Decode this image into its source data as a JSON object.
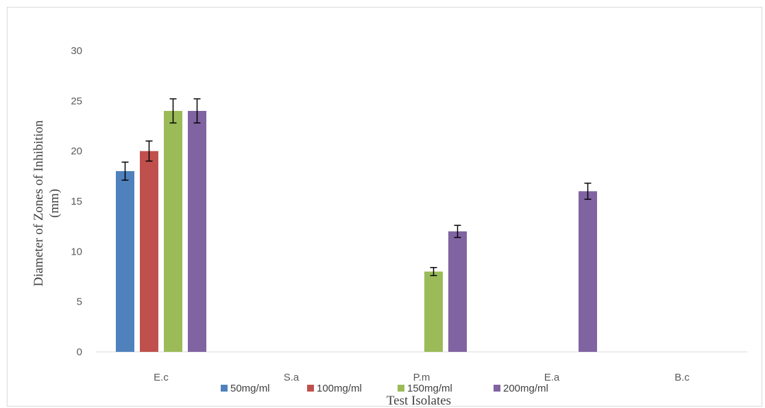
{
  "chart_data": {
    "type": "bar",
    "title": "",
    "xlabel": "Test Isolates",
    "ylabel_lines": [
      "Diameter of Zones of Inhibition",
      "(mm)"
    ],
    "ylim": [
      0,
      30
    ],
    "yticks": [
      0,
      5,
      10,
      15,
      20,
      25,
      30
    ],
    "grid": false,
    "legend_position": "bottom",
    "categories": [
      "E.c",
      "S.a",
      "P.m",
      "E.a",
      "B.c"
    ],
    "series": [
      {
        "name": "50mg/ml",
        "color": "#4f81bd",
        "values": [
          18,
          0,
          0,
          0,
          0
        ],
        "errors": [
          0.9,
          0,
          0,
          0,
          0
        ]
      },
      {
        "name": "100mg/ml",
        "color": "#c0504d",
        "values": [
          20,
          0,
          0,
          0,
          0
        ],
        "errors": [
          1.0,
          0,
          0,
          0,
          0
        ]
      },
      {
        "name": "150mg/ml",
        "color": "#9bbb59",
        "values": [
          24,
          0,
          8,
          0,
          0
        ],
        "errors": [
          1.2,
          0,
          0.4,
          0,
          0
        ]
      },
      {
        "name": "200mg/ml",
        "color": "#8064a2",
        "values": [
          24,
          0,
          12,
          16,
          0
        ],
        "errors": [
          1.2,
          0,
          0.6,
          0.8,
          0
        ]
      }
    ]
  }
}
